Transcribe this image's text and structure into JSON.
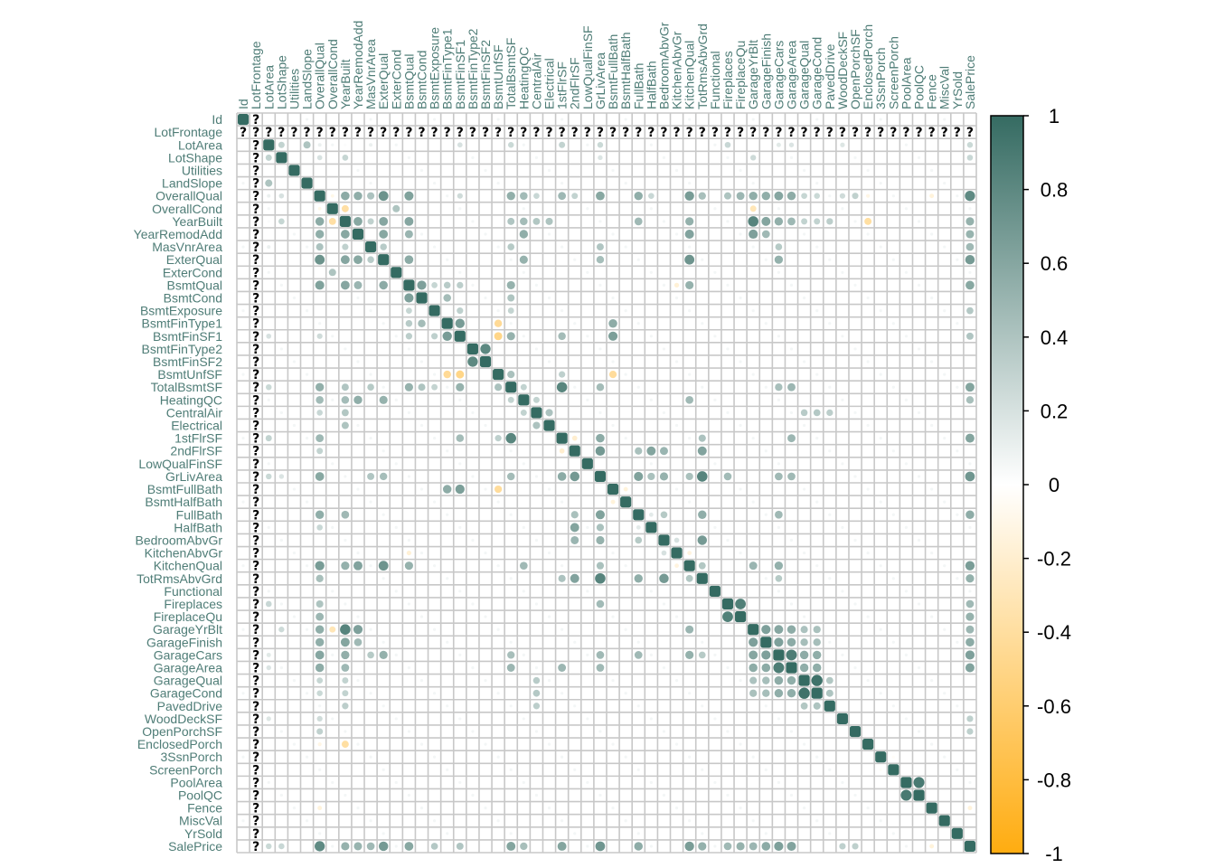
{
  "chart_data": {
    "type": "heatmap",
    "method": "circle",
    "layout": "full",
    "labels": [
      "Id",
      "LotFrontage",
      "LotArea",
      "LotShape",
      "Utilities",
      "LandSlope",
      "OverallQual",
      "OverallCond",
      "YearBuilt",
      "YearRemodAdd",
      "MasVnrArea",
      "ExterQual",
      "ExterCond",
      "BsmtQual",
      "BsmtCond",
      "BsmtExposure",
      "BsmtFinType1",
      "BsmtFinSF1",
      "BsmtFinType2",
      "BsmtFinSF2",
      "BsmtUnfSF",
      "TotalBsmtSF",
      "HeatingQC",
      "CentralAir",
      "Electrical",
      "1stFlrSF",
      "2ndFlrSF",
      "LowQualFinSF",
      "GrLivArea",
      "BsmtFullBath",
      "BsmtHalfBath",
      "FullBath",
      "HalfBath",
      "BedroomAbvGr",
      "KitchenAbvGr",
      "KitchenQual",
      "TotRmsAbvGrd",
      "Functional",
      "Fireplaces",
      "FireplaceQu",
      "GarageYrBlt",
      "GarageFinish",
      "GarageCars",
      "GarageArea",
      "GarageQual",
      "GarageCond",
      "PavedDrive",
      "WoodDeckSF",
      "OpenPorchSF",
      "EnclosedPorch",
      "3SsnPorch",
      "ScreenPorch",
      "PoolArea",
      "PoolQC",
      "Fence",
      "MiscVal",
      "YrSold",
      "SalePrice"
    ],
    "na_variable": "LotFrontage",
    "na_glyph": "?",
    "correlations": [
      {
        "a": "LotArea",
        "b": "LotShape",
        "r": 0.3
      },
      {
        "a": "LotArea",
        "b": "LandSlope",
        "r": 0.4
      },
      {
        "a": "LotArea",
        "b": "OverallQual",
        "r": 0.1
      },
      {
        "a": "LotArea",
        "b": "YearBuilt",
        "r": 0.02
      },
      {
        "a": "LotArea",
        "b": "MasVnrArea",
        "r": 0.1
      },
      {
        "a": "LotArea",
        "b": "BsmtFinSF1",
        "r": 0.2
      },
      {
        "a": "LotArea",
        "b": "TotalBsmtSF",
        "r": 0.26
      },
      {
        "a": "LotArea",
        "b": "1stFlrSF",
        "r": 0.3
      },
      {
        "a": "LotArea",
        "b": "GrLivArea",
        "r": 0.26
      },
      {
        "a": "LotArea",
        "b": "Fireplaces",
        "r": 0.27
      },
      {
        "a": "LotArea",
        "b": "GarageCars",
        "r": 0.15
      },
      {
        "a": "LotArea",
        "b": "GarageArea",
        "r": 0.18
      },
      {
        "a": "LotArea",
        "b": "WoodDeckSF",
        "r": 0.17
      },
      {
        "a": "LotArea",
        "b": "SalePrice",
        "r": 0.26
      },
      {
        "a": "LotShape",
        "b": "OverallQual",
        "r": 0.2
      },
      {
        "a": "LotShape",
        "b": "YearBuilt",
        "r": 0.28
      },
      {
        "a": "LotShape",
        "b": "GrLivArea",
        "r": 0.18
      },
      {
        "a": "LotShape",
        "b": "GarageYrBlt",
        "r": 0.25
      },
      {
        "a": "LotShape",
        "b": "SalePrice",
        "r": 0.27
      },
      {
        "a": "OverallQual",
        "b": "OverallCond",
        "r": -0.09
      },
      {
        "a": "OverallQual",
        "b": "YearBuilt",
        "r": 0.57
      },
      {
        "a": "OverallQual",
        "b": "YearRemodAdd",
        "r": 0.55
      },
      {
        "a": "OverallQual",
        "b": "MasVnrArea",
        "r": 0.41
      },
      {
        "a": "OverallQual",
        "b": "ExterQual",
        "r": 0.73
      },
      {
        "a": "OverallQual",
        "b": "BsmtQual",
        "r": 0.63
      },
      {
        "a": "OverallQual",
        "b": "BsmtFinSF1",
        "r": 0.24
      },
      {
        "a": "OverallQual",
        "b": "TotalBsmtSF",
        "r": 0.54
      },
      {
        "a": "OverallQual",
        "b": "HeatingQC",
        "r": 0.46
      },
      {
        "a": "OverallQual",
        "b": "CentralAir",
        "r": 0.27
      },
      {
        "a": "OverallQual",
        "b": "1stFlrSF",
        "r": 0.48
      },
      {
        "a": "OverallQual",
        "b": "2ndFlrSF",
        "r": 0.3
      },
      {
        "a": "OverallQual",
        "b": "GrLivArea",
        "r": 0.59
      },
      {
        "a": "OverallQual",
        "b": "FullBath",
        "r": 0.55
      },
      {
        "a": "OverallQual",
        "b": "HalfBath",
        "r": 0.27
      },
      {
        "a": "OverallQual",
        "b": "KitchenQual",
        "r": 0.67
      },
      {
        "a": "OverallQual",
        "b": "TotRmsAbvGrd",
        "r": 0.43
      },
      {
        "a": "OverallQual",
        "b": "Fireplaces",
        "r": 0.4
      },
      {
        "a": "OverallQual",
        "b": "FireplaceQu",
        "r": 0.49
      },
      {
        "a": "OverallQual",
        "b": "GarageYrBlt",
        "r": 0.55
      },
      {
        "a": "OverallQual",
        "b": "GarageFinish",
        "r": 0.55
      },
      {
        "a": "OverallQual",
        "b": "GarageCars",
        "r": 0.6
      },
      {
        "a": "OverallQual",
        "b": "GarageArea",
        "r": 0.56
      },
      {
        "a": "OverallQual",
        "b": "GarageQual",
        "r": 0.28
      },
      {
        "a": "OverallQual",
        "b": "GarageCond",
        "r": 0.26
      },
      {
        "a": "OverallQual",
        "b": "WoodDeckSF",
        "r": 0.24
      },
      {
        "a": "OverallQual",
        "b": "OpenPorchSF",
        "r": 0.31
      },
      {
        "a": "OverallQual",
        "b": "EnclosedPorch",
        "r": -0.11
      },
      {
        "a": "OverallQual",
        "b": "Fence",
        "r": -0.15
      },
      {
        "a": "OverallQual",
        "b": "SalePrice",
        "r": 0.79
      },
      {
        "a": "OverallCond",
        "b": "YearBuilt",
        "r": -0.38
      },
      {
        "a": "OverallCond",
        "b": "ExterCond",
        "r": 0.4
      },
      {
        "a": "OverallCond",
        "b": "GarageYrBlt",
        "r": -0.3
      },
      {
        "a": "YearBuilt",
        "b": "YearRemodAdd",
        "r": 0.59
      },
      {
        "a": "YearBuilt",
        "b": "MasVnrArea",
        "r": 0.31
      },
      {
        "a": "YearBuilt",
        "b": "ExterQual",
        "r": 0.6
      },
      {
        "a": "YearBuilt",
        "b": "BsmtQual",
        "r": 0.6
      },
      {
        "a": "YearBuilt",
        "b": "TotalBsmtSF",
        "r": 0.39
      },
      {
        "a": "YearBuilt",
        "b": "HeatingQC",
        "r": 0.45
      },
      {
        "a": "YearBuilt",
        "b": "CentralAir",
        "r": 0.38
      },
      {
        "a": "YearBuilt",
        "b": "Electrical",
        "r": 0.4
      },
      {
        "a": "YearBuilt",
        "b": "FullBath",
        "r": 0.47
      },
      {
        "a": "YearBuilt",
        "b": "KitchenQual",
        "r": 0.53
      },
      {
        "a": "YearBuilt",
        "b": "GarageYrBlt",
        "r": 0.83
      },
      {
        "a": "YearBuilt",
        "b": "GarageFinish",
        "r": 0.61
      },
      {
        "a": "YearBuilt",
        "b": "GarageCars",
        "r": 0.54
      },
      {
        "a": "YearBuilt",
        "b": "GarageArea",
        "r": 0.48
      },
      {
        "a": "YearBuilt",
        "b": "GarageQual",
        "r": 0.3
      },
      {
        "a": "YearBuilt",
        "b": "GarageCond",
        "r": 0.3
      },
      {
        "a": "YearBuilt",
        "b": "PavedDrive",
        "r": 0.33
      },
      {
        "a": "YearBuilt",
        "b": "EnclosedPorch",
        "r": -0.39
      },
      {
        "a": "YearBuilt",
        "b": "SalePrice",
        "r": 0.52
      },
      {
        "a": "YearRemodAdd",
        "b": "ExterQual",
        "r": 0.59
      },
      {
        "a": "YearRemodAdd",
        "b": "BsmtQual",
        "r": 0.5
      },
      {
        "a": "YearRemodAdd",
        "b": "HeatingQC",
        "r": 0.55
      },
      {
        "a": "YearRemodAdd",
        "b": "KitchenQual",
        "r": 0.62
      },
      {
        "a": "YearRemodAdd",
        "b": "GarageYrBlt",
        "r": 0.64
      },
      {
        "a": "YearRemodAdd",
        "b": "GarageFinish",
        "r": 0.47
      },
      {
        "a": "YearRemodAdd",
        "b": "SalePrice",
        "r": 0.51
      },
      {
        "a": "MasVnrArea",
        "b": "ExterQual",
        "r": 0.35
      },
      {
        "a": "MasVnrArea",
        "b": "TotalBsmtSF",
        "r": 0.36
      },
      {
        "a": "MasVnrArea",
        "b": "GrLivArea",
        "r": 0.39
      },
      {
        "a": "MasVnrArea",
        "b": "GarageCars",
        "r": 0.36
      },
      {
        "a": "MasVnrArea",
        "b": "SalePrice",
        "r": 0.47
      },
      {
        "a": "ExterQual",
        "b": "BsmtQual",
        "r": 0.57
      },
      {
        "a": "ExterQual",
        "b": "HeatingQC",
        "r": 0.52
      },
      {
        "a": "ExterQual",
        "b": "KitchenQual",
        "r": 0.72
      },
      {
        "a": "ExterQual",
        "b": "GrLivArea",
        "r": 0.44
      },
      {
        "a": "ExterQual",
        "b": "GarageCars",
        "r": 0.53
      },
      {
        "a": "ExterQual",
        "b": "SalePrice",
        "r": 0.68
      },
      {
        "a": "BsmtQual",
        "b": "BsmtCond",
        "r": 0.64
      },
      {
        "a": "BsmtQual",
        "b": "BsmtExposure",
        "r": 0.28
      },
      {
        "a": "BsmtQual",
        "b": "BsmtFinType1",
        "r": 0.35
      },
      {
        "a": "BsmtQual",
        "b": "BsmtFinSF1",
        "r": 0.33
      },
      {
        "a": "BsmtQual",
        "b": "TotalBsmtSF",
        "r": 0.52
      },
      {
        "a": "BsmtQual",
        "b": "KitchenQual",
        "r": 0.52
      },
      {
        "a": "BsmtQual",
        "b": "SalePrice",
        "r": 0.59
      },
      {
        "a": "BsmtCond",
        "b": "BsmtFinType1",
        "r": 0.45
      },
      {
        "a": "BsmtCond",
        "b": "TotalBsmtSF",
        "r": 0.4
      },
      {
        "a": "BsmtExposure",
        "b": "BsmtFinSF1",
        "r": 0.32
      },
      {
        "a": "BsmtExposure",
        "b": "TotalBsmtSF",
        "r": 0.29
      },
      {
        "a": "BsmtExposure",
        "b": "SalePrice",
        "r": 0.37
      },
      {
        "a": "BsmtFinType1",
        "b": "BsmtFinSF1",
        "r": 0.67
      },
      {
        "a": "BsmtFinType1",
        "b": "BsmtUnfSF",
        "r": -0.44
      },
      {
        "a": "BsmtFinType1",
        "b": "BsmtFullBath",
        "r": 0.56
      },
      {
        "a": "BsmtFinSF1",
        "b": "BsmtUnfSF",
        "r": -0.5
      },
      {
        "a": "BsmtFinSF1",
        "b": "TotalBsmtSF",
        "r": 0.52
      },
      {
        "a": "BsmtFinSF1",
        "b": "1stFlrSF",
        "r": 0.45
      },
      {
        "a": "BsmtFinSF1",
        "b": "BsmtFullBath",
        "r": 0.65
      },
      {
        "a": "BsmtFinSF1",
        "b": "SalePrice",
        "r": 0.39
      },
      {
        "a": "BsmtFinType2",
        "b": "BsmtFinSF2",
        "r": 0.8
      },
      {
        "a": "BsmtUnfSF",
        "b": "TotalBsmtSF",
        "r": 0.42
      },
      {
        "a": "BsmtUnfSF",
        "b": "1stFlrSF",
        "r": 0.32
      },
      {
        "a": "BsmtUnfSF",
        "b": "BsmtFullBath",
        "r": -0.42
      },
      {
        "a": "TotalBsmtSF",
        "b": "HeatingQC",
        "r": 0.3
      },
      {
        "a": "TotalBsmtSF",
        "b": "1stFlrSF",
        "r": 0.82
      },
      {
        "a": "TotalBsmtSF",
        "b": "GrLivArea",
        "r": 0.45
      },
      {
        "a": "TotalBsmtSF",
        "b": "GarageCars",
        "r": 0.43
      },
      {
        "a": "TotalBsmtSF",
        "b": "GarageArea",
        "r": 0.49
      },
      {
        "a": "TotalBsmtSF",
        "b": "SalePrice",
        "r": 0.61
      },
      {
        "a": "HeatingQC",
        "b": "CentralAir",
        "r": 0.3
      },
      {
        "a": "HeatingQC",
        "b": "KitchenQual",
        "r": 0.47
      },
      {
        "a": "HeatingQC",
        "b": "SalePrice",
        "r": 0.43
      },
      {
        "a": "CentralAir",
        "b": "Electrical",
        "r": 0.41
      },
      {
        "a": "CentralAir",
        "b": "GarageQual",
        "r": 0.35
      },
      {
        "a": "CentralAir",
        "b": "GarageCond",
        "r": 0.37
      },
      {
        "a": "CentralAir",
        "b": "PavedDrive",
        "r": 0.33
      },
      {
        "a": "1stFlrSF",
        "b": "2ndFlrSF",
        "r": -0.2
      },
      {
        "a": "1stFlrSF",
        "b": "GrLivArea",
        "r": 0.57
      },
      {
        "a": "1stFlrSF",
        "b": "TotRmsAbvGrd",
        "r": 0.41
      },
      {
        "a": "1stFlrSF",
        "b": "GarageArea",
        "r": 0.49
      },
      {
        "a": "1stFlrSF",
        "b": "SalePrice",
        "r": 0.61
      },
      {
        "a": "2ndFlrSF",
        "b": "GrLivArea",
        "r": 0.69
      },
      {
        "a": "2ndFlrSF",
        "b": "HalfBath",
        "r": 0.61
      },
      {
        "a": "2ndFlrSF",
        "b": "BedroomAbvGr",
        "r": 0.5
      },
      {
        "a": "2ndFlrSF",
        "b": "TotRmsAbvGrd",
        "r": 0.62
      },
      {
        "a": "2ndFlrSF",
        "b": "FullBath",
        "r": 0.42
      },
      {
        "a": "GrLivArea",
        "b": "FullBath",
        "r": 0.63
      },
      {
        "a": "GrLivArea",
        "b": "HalfBath",
        "r": 0.42
      },
      {
        "a": "GrLivArea",
        "b": "BedroomAbvGr",
        "r": 0.52
      },
      {
        "a": "GrLivArea",
        "b": "KitchenQual",
        "r": 0.42
      },
      {
        "a": "GrLivArea",
        "b": "TotRmsAbvGrd",
        "r": 0.83
      },
      {
        "a": "GrLivArea",
        "b": "Fireplaces",
        "r": 0.46
      },
      {
        "a": "GrLivArea",
        "b": "GarageCars",
        "r": 0.47
      },
      {
        "a": "GrLivArea",
        "b": "GarageArea",
        "r": 0.47
      },
      {
        "a": "GrLivArea",
        "b": "SalePrice",
        "r": 0.71
      },
      {
        "a": "BsmtFullBath",
        "b": "BsmtHalfBath",
        "r": -0.15
      },
      {
        "a": "FullBath",
        "b": "HalfBath",
        "r": 0.14
      },
      {
        "a": "FullBath",
        "b": "BedroomAbvGr",
        "r": 0.36
      },
      {
        "a": "FullBath",
        "b": "TotRmsAbvGrd",
        "r": 0.55
      },
      {
        "a": "FullBath",
        "b": "GarageCars",
        "r": 0.47
      },
      {
        "a": "FullBath",
        "b": "SalePrice",
        "r": 0.56
      },
      {
        "a": "BedroomAbvGr",
        "b": "TotRmsAbvGrd",
        "r": 0.68
      },
      {
        "a": "BedroomAbvGr",
        "b": "KitchenAbvGr",
        "r": 0.2
      },
      {
        "a": "KitchenAbvGr",
        "b": "KitchenQual",
        "r": -0.14
      },
      {
        "a": "KitchenAbvGr",
        "b": "BsmtQual",
        "r": -0.17
      },
      {
        "a": "KitchenQual",
        "b": "TotRmsAbvGrd",
        "r": 0.38
      },
      {
        "a": "KitchenQual",
        "b": "GarageYrBlt",
        "r": 0.5
      },
      {
        "a": "KitchenQual",
        "b": "GarageCars",
        "r": 0.53
      },
      {
        "a": "KitchenQual",
        "b": "SalePrice",
        "r": 0.66
      },
      {
        "a": "TotRmsAbvGrd",
        "b": "GarageCars",
        "r": 0.36
      },
      {
        "a": "TotRmsAbvGrd",
        "b": "SalePrice",
        "r": 0.53
      },
      {
        "a": "Fireplaces",
        "b": "FireplaceQu",
        "r": 0.86
      },
      {
        "a": "Fireplaces",
        "b": "SalePrice",
        "r": 0.47
      },
      {
        "a": "FireplaceQu",
        "b": "SalePrice",
        "r": 0.52
      },
      {
        "a": "GarageYrBlt",
        "b": "GarageFinish",
        "r": 0.64
      },
      {
        "a": "GarageYrBlt",
        "b": "GarageCars",
        "r": 0.6
      },
      {
        "a": "GarageYrBlt",
        "b": "GarageArea",
        "r": 0.56
      },
      {
        "a": "GarageYrBlt",
        "b": "GarageQual",
        "r": 0.41
      },
      {
        "a": "GarageYrBlt",
        "b": "GarageCond",
        "r": 0.42
      },
      {
        "a": "GarageYrBlt",
        "b": "SalePrice",
        "r": 0.49
      },
      {
        "a": "GarageFinish",
        "b": "GarageCars",
        "r": 0.64
      },
      {
        "a": "GarageFinish",
        "b": "GarageArea",
        "r": 0.57
      },
      {
        "a": "GarageFinish",
        "b": "GarageQual",
        "r": 0.44
      },
      {
        "a": "GarageFinish",
        "b": "GarageCond",
        "r": 0.44
      },
      {
        "a": "GarageFinish",
        "b": "SalePrice",
        "r": 0.57
      },
      {
        "a": "GarageCars",
        "b": "GarageArea",
        "r": 0.88
      },
      {
        "a": "GarageCars",
        "b": "GarageQual",
        "r": 0.56
      },
      {
        "a": "GarageCars",
        "b": "GarageCond",
        "r": 0.55
      },
      {
        "a": "GarageCars",
        "b": "SalePrice",
        "r": 0.64
      },
      {
        "a": "GarageArea",
        "b": "GarageQual",
        "r": 0.55
      },
      {
        "a": "GarageArea",
        "b": "GarageCond",
        "r": 0.55
      },
      {
        "a": "GarageArea",
        "b": "SalePrice",
        "r": 0.62
      },
      {
        "a": "GarageQual",
        "b": "GarageCond",
        "r": 0.95
      },
      {
        "a": "GarageQual",
        "b": "PavedDrive",
        "r": 0.38
      },
      {
        "a": "GarageCond",
        "b": "PavedDrive",
        "r": 0.4
      },
      {
        "a": "WoodDeckSF",
        "b": "SalePrice",
        "r": 0.32
      },
      {
        "a": "OpenPorchSF",
        "b": "SalePrice",
        "r": 0.32
      },
      {
        "a": "PoolArea",
        "b": "PoolQC",
        "r": 0.9
      },
      {
        "a": "Fence",
        "b": "SalePrice",
        "r": -0.15
      },
      {
        "a": "3SsnPorch",
        "b": "ScreenPorch",
        "r": -0.03
      },
      {
        "a": "MiscVal",
        "b": "YrSold",
        "r": -0.01
      }
    ],
    "colorbar": {
      "ticks": [
        "1",
        "0.8",
        "0.6",
        "0.4",
        "0.2",
        "0",
        "-0.2",
        "-0.4",
        "-0.6",
        "-0.8",
        "-1"
      ],
      "lim": [
        -1,
        1
      ],
      "colors": {
        "positive": "#356b62",
        "zero": "#ffffff",
        "negative": "#ffac10"
      }
    },
    "label_color": "#4f7d77",
    "grid_color": "#c8c8c8",
    "xlabel": "",
    "ylabel": "",
    "legend_placement": "right"
  }
}
